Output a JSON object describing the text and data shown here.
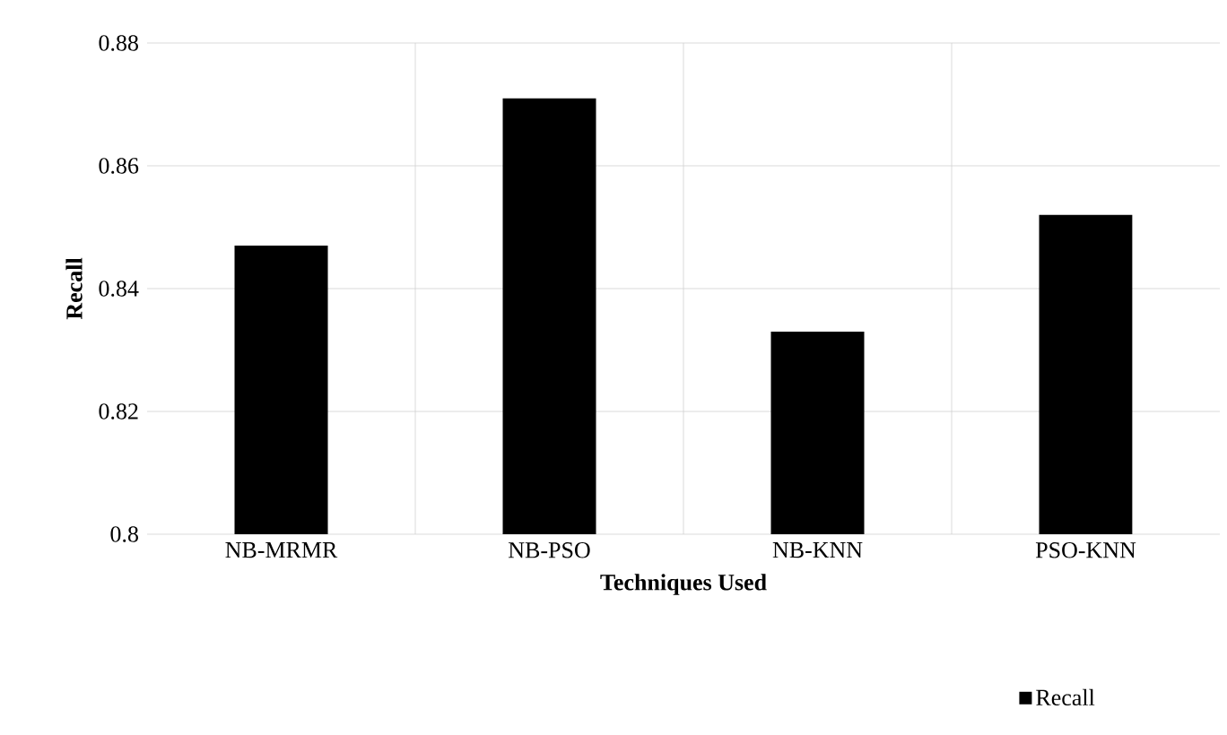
{
  "chart_data": {
    "type": "bar",
    "xlabel": "Techniques Used",
    "ylabel": "Recall",
    "categories": [
      "NB-MRMR",
      "NB-PSO",
      "NB-KNN",
      "PSO-KNN"
    ],
    "series": [
      {
        "name": "Recall",
        "color": "#000000",
        "values": [
          0.847,
          0.871,
          0.833,
          0.852
        ]
      }
    ],
    "ylim": [
      0.8,
      0.88
    ],
    "yticks": [
      0.8,
      0.82,
      0.84,
      0.86,
      0.88
    ],
    "grid": true,
    "legend": "bottom"
  }
}
